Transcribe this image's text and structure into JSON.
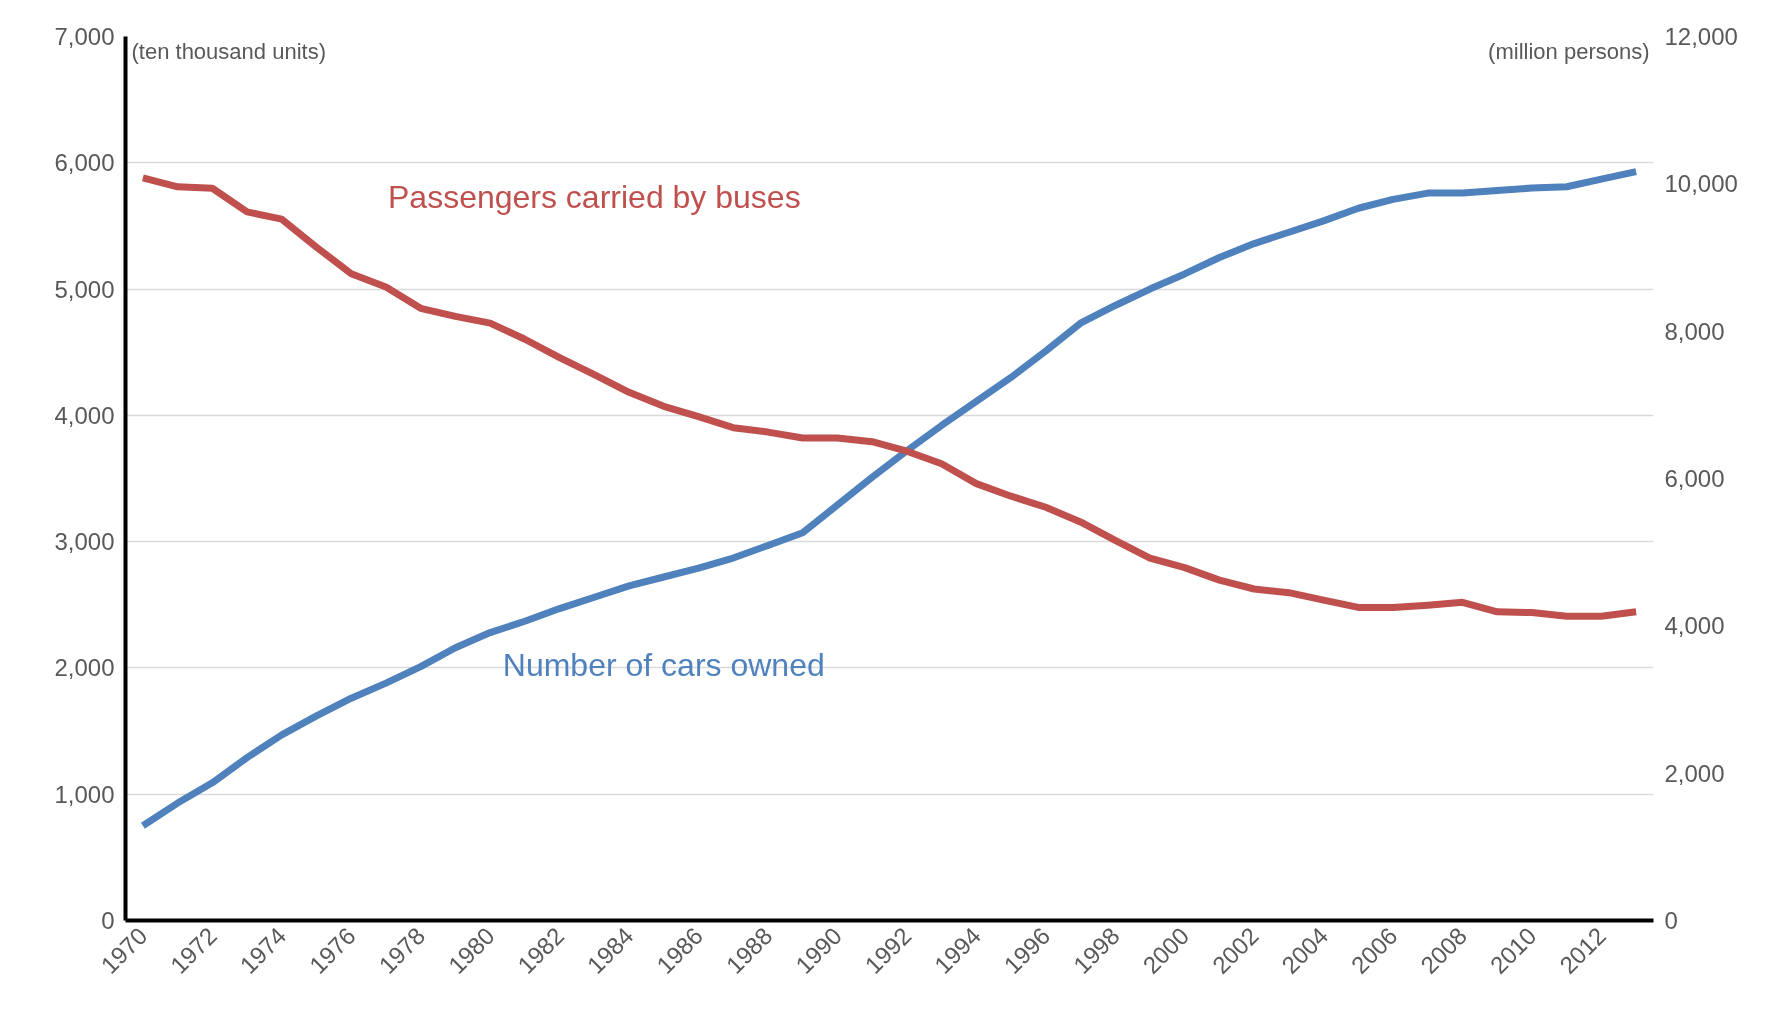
{
  "chart_data": {
    "type": "line",
    "ylabel": "(ten thousand units)",
    "y2label": "(million persons)",
    "x": [
      1970,
      1971,
      1972,
      1973,
      1974,
      1975,
      1976,
      1977,
      1978,
      1979,
      1980,
      1981,
      1982,
      1983,
      1984,
      1985,
      1986,
      1987,
      1988,
      1989,
      1990,
      1991,
      1992,
      1993,
      1994,
      1995,
      1996,
      1997,
      1998,
      1999,
      2000,
      2001,
      2002,
      2003,
      2004,
      2005,
      2006,
      2007,
      2008,
      2009,
      2010,
      2011,
      2012,
      2013
    ],
    "series": [
      {
        "name": "Number of cars owned",
        "color": "#4f81bd",
        "values": [
          750,
          930,
          1090,
          1290,
          1470,
          1620,
          1760,
          1880,
          2010,
          2160,
          2280,
          2370,
          2470,
          2560,
          2650,
          2720,
          2790,
          2870,
          2970,
          3070,
          3290,
          3510,
          3720,
          3920,
          4110,
          4300,
          4510,
          4730,
          4870,
          5000,
          5120,
          5250,
          5360,
          5450,
          5540,
          5640,
          5710,
          5760,
          5760,
          5780,
          5800,
          5810,
          5870,
          5930
        ]
      },
      {
        "name": "Passengers carried by buses",
        "color": "#c0504d",
        "axis": "y2",
        "values": [
          10080,
          9960,
          9940,
          9620,
          9520,
          9140,
          8780,
          8600,
          8310,
          8200,
          8110,
          7890,
          7640,
          7410,
          7170,
          6980,
          6840,
          6690,
          6630,
          6550,
          6550,
          6500,
          6370,
          6200,
          5930,
          5760,
          5610,
          5410,
          5160,
          4920,
          4790,
          4620,
          4500,
          4450,
          4350,
          4250,
          4250,
          4280,
          4320,
          4190,
          4180,
          4130,
          4130,
          4190
        ]
      }
    ],
    "xlim": [
      1969.5,
      2013.5
    ],
    "xticks": [
      1970,
      1972,
      1974,
      1976,
      1978,
      1980,
      1982,
      1984,
      1986,
      1988,
      1990,
      1992,
      1994,
      1996,
      1998,
      2000,
      2002,
      2004,
      2006,
      2008,
      2010,
      2012
    ],
    "ylim": [
      0,
      7000
    ],
    "yticks": [
      {
        "value": 0,
        "label": "0"
      },
      {
        "value": 1000,
        "label": "1,000"
      },
      {
        "value": 2000,
        "label": "2,000"
      },
      {
        "value": 3000,
        "label": "3,000"
      },
      {
        "value": 4000,
        "label": "4,000"
      },
      {
        "value": 5000,
        "label": "5,000"
      },
      {
        "value": 6000,
        "label": "6,000"
      },
      {
        "value": 7000,
        "label": "7,000"
      }
    ],
    "y2lim": [
      0,
      12000
    ],
    "y2ticks": [
      {
        "value": 0,
        "label": "0"
      },
      {
        "value": 2000,
        "label": "2,000"
      },
      {
        "value": 4000,
        "label": "4,000"
      },
      {
        "value": 6000,
        "label": "6,000"
      },
      {
        "value": 8000,
        "label": "8,000"
      },
      {
        "value": 10000,
        "label": "10,000"
      },
      {
        "value": 12000,
        "label": "12,000"
      }
    ],
    "grid": "y"
  }
}
